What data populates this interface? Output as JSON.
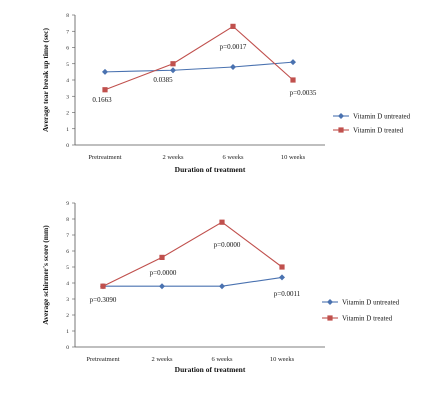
{
  "chart_data": [
    {
      "type": "line",
      "categories": [
        "Pretreatment",
        "2 weeks",
        "6 weeks",
        "10 weeks"
      ],
      "xlabel": "Duration of treatment",
      "ylabel": "Average tear break up time (sec)",
      "ylim": [
        0,
        8
      ],
      "yticks": [
        "0",
        "1",
        "2",
        "3",
        "4",
        "5",
        "6",
        "7",
        "8"
      ],
      "grid": false,
      "legend_position": "right",
      "series": [
        {
          "name": "Vitamin D untreated",
          "values": [
            4.5,
            4.6,
            4.8,
            5.1
          ],
          "color": "#4a72b0",
          "marker": "diamond"
        },
        {
          "name": "Vitamin D treated",
          "values": [
            3.4,
            5.0,
            7.3,
            4.0
          ],
          "color": "#c0504d",
          "marker": "square"
        }
      ],
      "annotations": [
        "0.1663",
        "0.0385",
        "p=0.0017",
        "p=0.0035"
      ]
    },
    {
      "type": "line",
      "categories": [
        "Pretreatment",
        "2 weeks",
        "6 weeks",
        "10 weeks"
      ],
      "xlabel": "Duration of treatment",
      "ylabel": "Average schirmer's score (mm)",
      "ylim": [
        0,
        9
      ],
      "yticks": [
        "0",
        "1",
        "2",
        "3",
        "4",
        "5",
        "6",
        "7",
        "8",
        "9"
      ],
      "grid": false,
      "legend_position": "right",
      "series": [
        {
          "name": "Vitamin D untreated",
          "values": [
            3.8,
            3.8,
            3.8,
            4.35
          ],
          "color": "#4a72b0",
          "marker": "diamond"
        },
        {
          "name": "Vitamin D treated",
          "values": [
            3.8,
            5.6,
            7.8,
            5.0
          ],
          "color": "#c0504d",
          "marker": "square"
        }
      ],
      "annotations": [
        "p=0.3090",
        "p=0.0000",
        "p=0.0000",
        "p=0.0011"
      ]
    }
  ]
}
